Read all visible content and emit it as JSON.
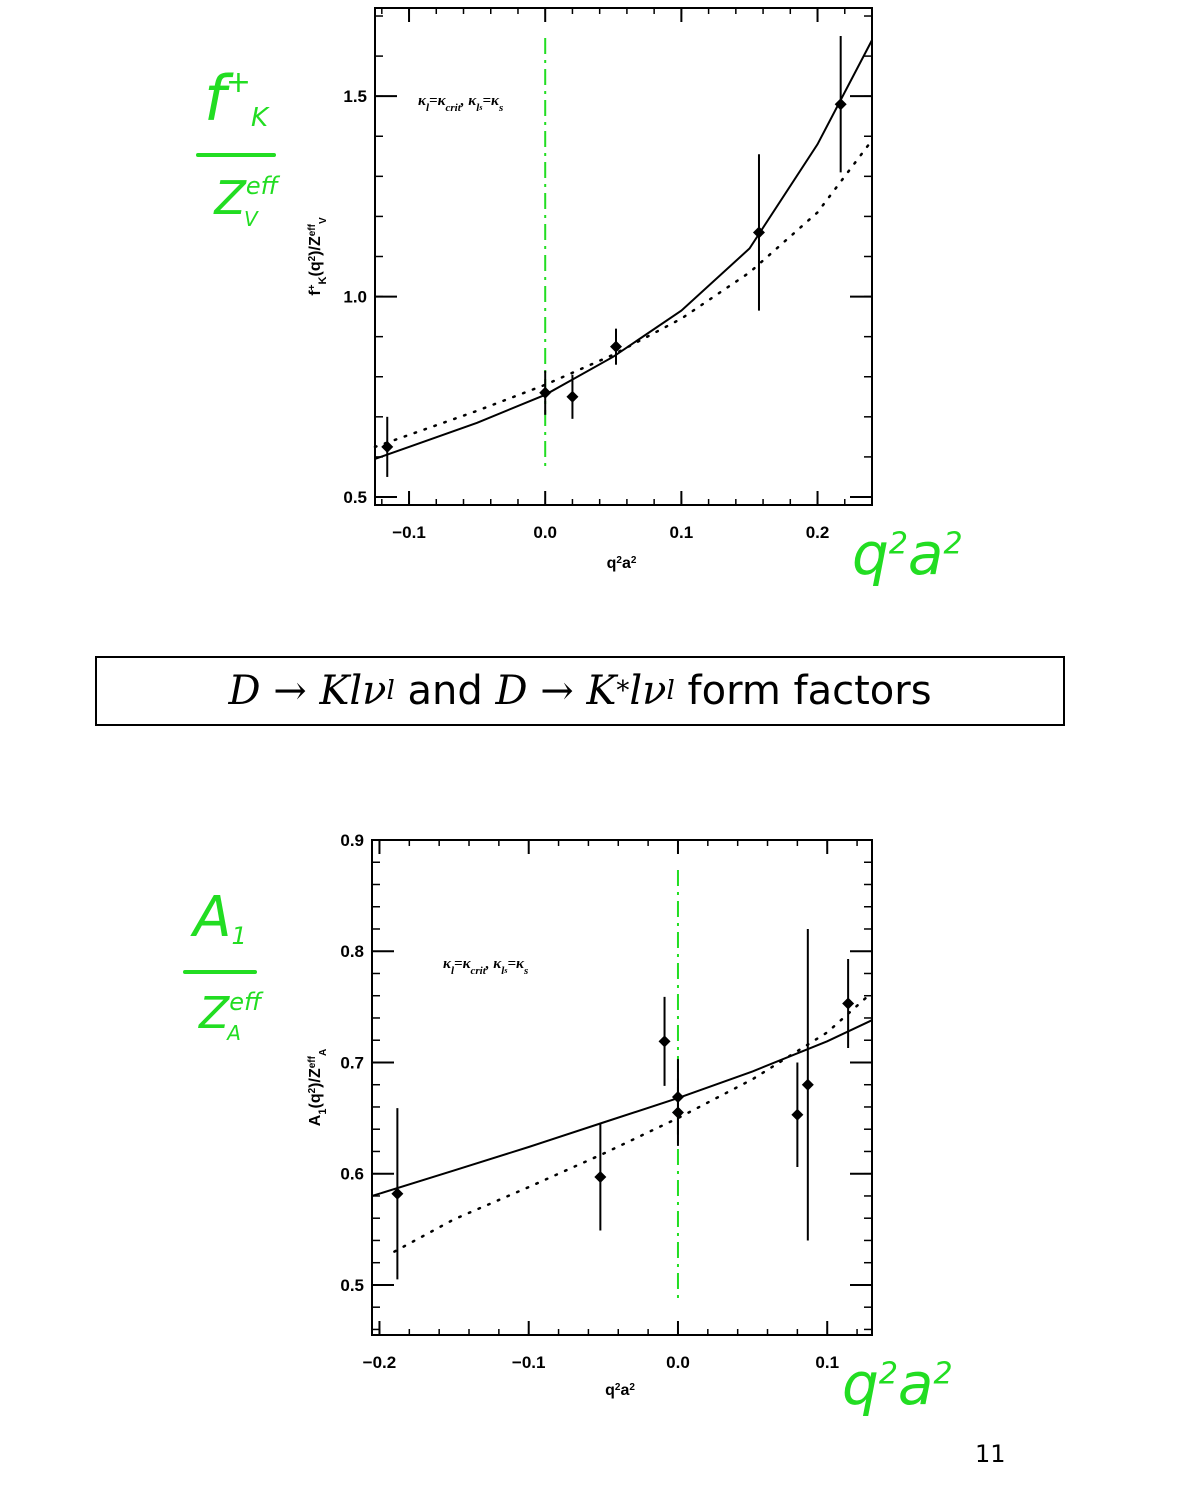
{
  "slide_title": {
    "part1": "D → Klν",
    "sub1": "l",
    "and": " and ",
    "part2": "D → K",
    "sup2": "*",
    "part2b": "lν",
    "sub2": "l",
    "rest": " form factors"
  },
  "page_number": "11",
  "colors": {
    "data": "#000000",
    "guide": "#22dd22",
    "handwriting": "#22dd22"
  },
  "handwriting": {
    "top_label_num": "f",
    "top_label_num_sup": "+",
    "top_label_num_sub": "K",
    "top_label_den": "Z",
    "top_label_den_sup": "eff",
    "top_label_den_sub": "V",
    "bottom_label_num": "A",
    "bottom_label_num_sub": "1",
    "bottom_label_den": "Z",
    "bottom_label_den_sup": "eff",
    "bottom_label_den_sub": "A",
    "x_label_top": "q",
    "x_label_bottom": "q",
    "sq": "2",
    "a": "a"
  },
  "chart_data": [
    {
      "type": "scatter",
      "title": "",
      "xlabel": "q²a²",
      "ylabel": "f⁺K(q²)/Zᵛᵉᶠᶠ",
      "ylabel_main": "f",
      "ylabel_sup": "+",
      "ylabel_sub": "K",
      "ylabel_mid": "(q",
      "ylabel_sq": "2",
      "ylabel_end": ")/Z",
      "ylabel_sup2": "eff",
      "ylabel_sub2": "V",
      "xlabel_q": "q",
      "xlabel_a": "a",
      "xlabel_sq": "2",
      "annotation": "κl=κcrit, κls=κs",
      "annot_k1": "κ",
      "annot_k1_sub": "l",
      "annot_eq1": "=κ",
      "annot_crit_sub": "crit",
      "annot_sep": ",  κ",
      "annot_k2_sub": "l",
      "annot_k2_subsub": "s",
      "annot_eq2": "=κ",
      "annot_s_sub": "s",
      "xlim": [
        -0.125,
        0.24
      ],
      "ylim": [
        0.48,
        1.72
      ],
      "xticks": [
        -0.1,
        0.0,
        0.1,
        0.2
      ],
      "xtick_labels": [
        "−0.1",
        "0.0",
        "0.1",
        "0.2"
      ],
      "yticks": [
        0.5,
        1.0,
        1.5
      ],
      "ytick_labels": [
        "0.5",
        "1.0",
        "1.5"
      ],
      "grid": false,
      "points": [
        {
          "x": -0.116,
          "y": 0.625,
          "err": 0.075
        },
        {
          "x": 0.0,
          "y": 0.76,
          "err": 0.055
        },
        {
          "x": 0.02,
          "y": 0.75,
          "err": 0.055
        },
        {
          "x": 0.052,
          "y": 0.875,
          "err": 0.045
        },
        {
          "x": 0.157,
          "y": 1.16,
          "err": 0.195
        },
        {
          "x": 0.217,
          "y": 1.48,
          "err": 0.17
        }
      ],
      "fits": [
        {
          "style": "solid",
          "x": [
            -0.125,
            -0.1,
            -0.05,
            0.0,
            0.05,
            0.1,
            0.15,
            0.2,
            0.24
          ],
          "y": [
            0.595,
            0.625,
            0.685,
            0.755,
            0.85,
            0.965,
            1.12,
            1.38,
            1.64
          ]
        },
        {
          "style": "dotted",
          "x": [
            -0.125,
            -0.1,
            -0.05,
            0.0,
            0.05,
            0.1,
            0.15,
            0.2,
            0.24
          ],
          "y": [
            0.625,
            0.655,
            0.715,
            0.78,
            0.855,
            0.945,
            1.06,
            1.21,
            1.39
          ]
        }
      ],
      "guide_x": 0.0
    },
    {
      "type": "scatter",
      "title": "",
      "xlabel": "q²a²",
      "ylabel": "A₁(q²)/Zᴬᵉᶠᶠ",
      "ylabel_main": "A",
      "ylabel_sub": "1",
      "ylabel_mid": "(q",
      "ylabel_sq": "2",
      "ylabel_end": ")/Z",
      "ylabel_sup2": "eff",
      "ylabel_sub2": "A",
      "xlabel_q": "q",
      "xlabel_a": "a",
      "xlabel_sq": "2",
      "annotation": "κl=κcrit, κls=κs",
      "annot_k1": "κ",
      "annot_k1_sub": "l",
      "annot_eq1": "=κ",
      "annot_crit_sub": "crit",
      "annot_sep": ",  κ",
      "annot_k2_sub": "l",
      "annot_k2_subsub": "s",
      "annot_eq2": "=κ",
      "annot_s_sub": "s",
      "xlim": [
        -0.205,
        0.13
      ],
      "ylim": [
        0.455,
        0.9
      ],
      "xticks": [
        -0.2,
        -0.1,
        0.0,
        0.1
      ],
      "xtick_labels": [
        "−0.2",
        "−0.1",
        "0.0",
        "0.1"
      ],
      "yticks": [
        0.5,
        0.6,
        0.7,
        0.8,
        0.9
      ],
      "ytick_labels": [
        "0.5",
        "0.6",
        "0.7",
        "0.8",
        "0.9"
      ],
      "grid": false,
      "points": [
        {
          "x": -0.188,
          "y": 0.582,
          "err": 0.077
        },
        {
          "x": -0.052,
          "y": 0.597,
          "err": 0.048
        },
        {
          "x": -0.009,
          "y": 0.719,
          "err": 0.04
        },
        {
          "x": 0.0,
          "y": 0.669,
          "err": 0.034
        },
        {
          "x": 0.0,
          "y": 0.655,
          "err": 0.03
        },
        {
          "x": 0.08,
          "y": 0.653,
          "err": 0.047
        },
        {
          "x": 0.087,
          "y": 0.68,
          "err": 0.14
        },
        {
          "x": 0.114,
          "y": 0.753,
          "err": 0.04
        }
      ],
      "fits": [
        {
          "style": "solid",
          "x": [
            -0.205,
            -0.15,
            -0.1,
            -0.05,
            0.0,
            0.05,
            0.1,
            0.13
          ],
          "y": [
            0.58,
            0.603,
            0.624,
            0.646,
            0.668,
            0.692,
            0.719,
            0.738
          ]
        },
        {
          "style": "dotted",
          "x": [
            -0.19,
            -0.15,
            -0.1,
            -0.05,
            0.0,
            0.05,
            0.1,
            0.13
          ],
          "y": [
            0.53,
            0.559,
            0.588,
            0.618,
            0.65,
            0.685,
            0.727,
            0.763
          ]
        }
      ],
      "guide_x": 0.0
    }
  ]
}
